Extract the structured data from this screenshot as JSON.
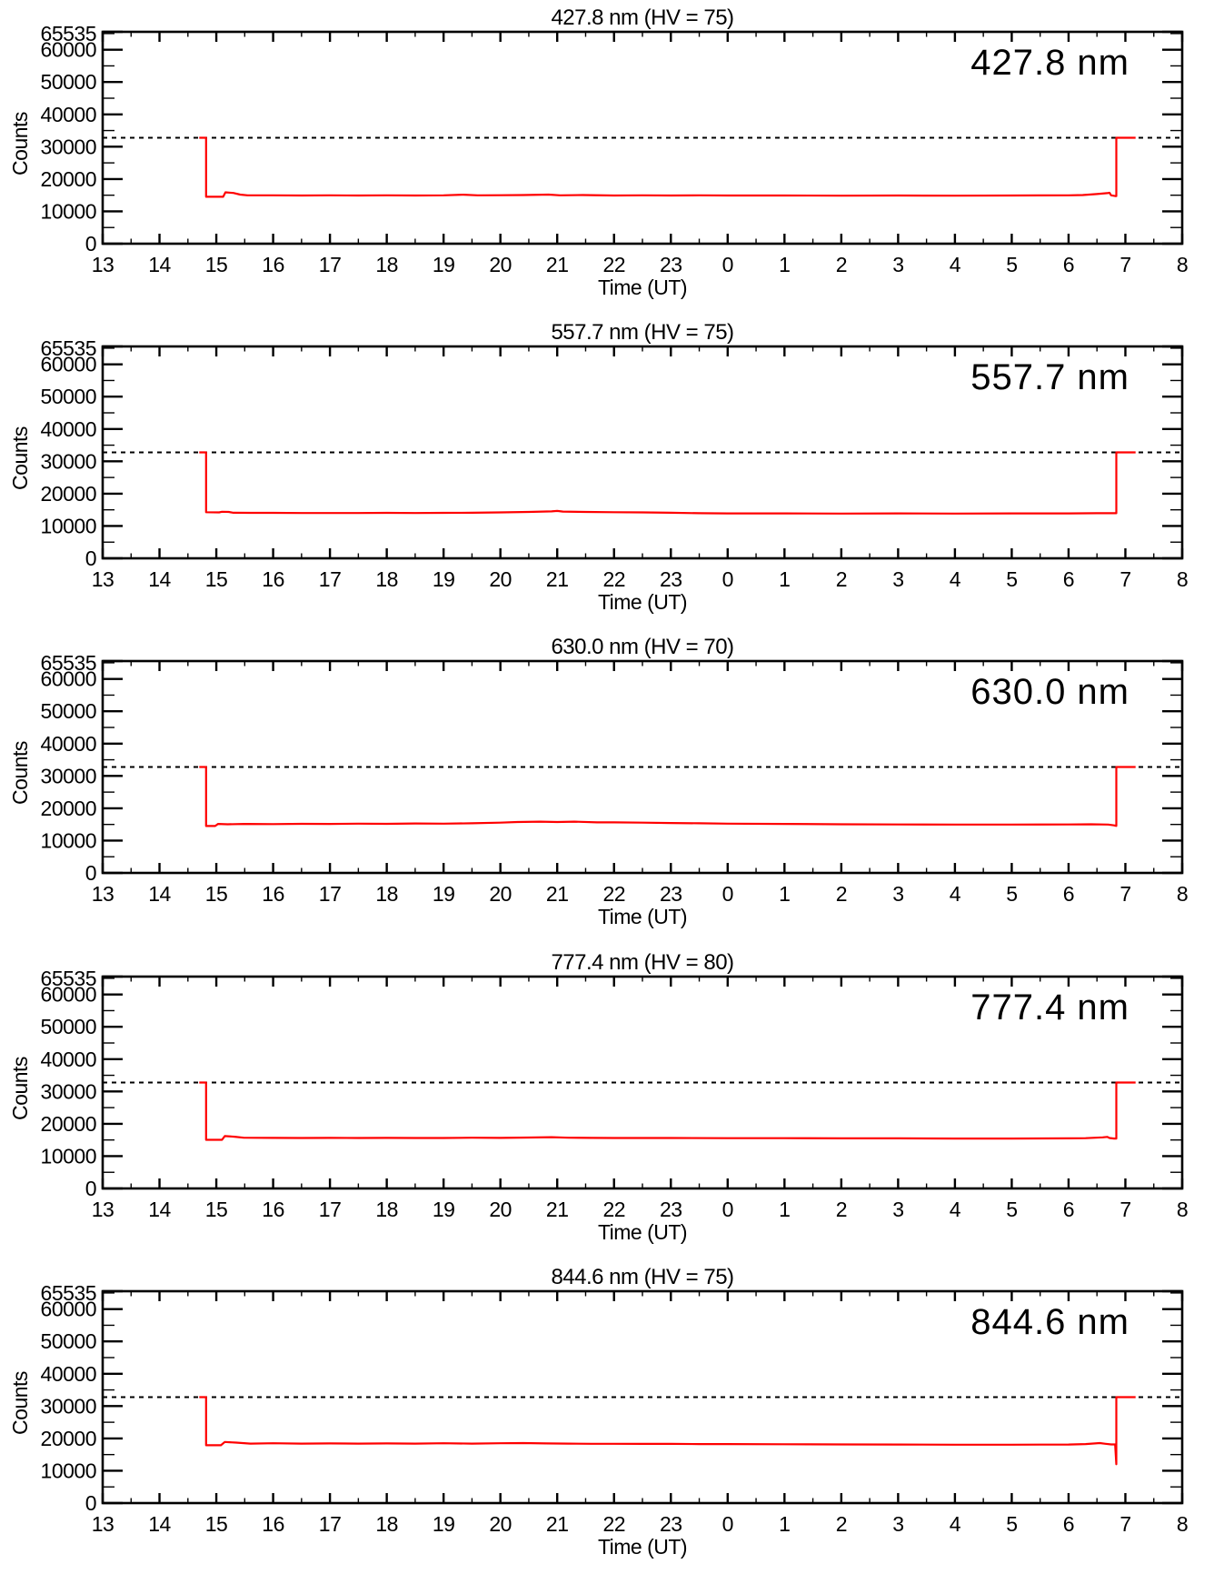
{
  "page": {
    "background": "#ffffff",
    "description": "Five stacked photometer count time-series panels, one per emission wavelength"
  },
  "chart_data": {
    "type": "line",
    "xlabel": "Time (UT)",
    "ylabel": "Counts",
    "ylim": [
      0,
      65535
    ],
    "xlim": [
      13,
      32
    ],
    "x_tick_labels": [
      "13",
      "14",
      "15",
      "16",
      "17",
      "18",
      "19",
      "20",
      "21",
      "22",
      "23",
      "0",
      "1",
      "2",
      "3",
      "4",
      "5",
      "6",
      "7",
      "8"
    ],
    "x_minor_step": 0.5,
    "y_tick_values": [
      0,
      10000,
      20000,
      30000,
      40000,
      50000,
      60000,
      65535
    ],
    "y_tick_labels": [
      "0",
      "10000",
      "20000",
      "30000",
      "40000",
      "50000",
      "60000",
      "65535"
    ],
    "y_minor_values": [
      5000,
      15000,
      25000,
      35000,
      45000,
      55000,
      65000
    ],
    "grid": false,
    "legend": "none",
    "dashed_line_y": 32768,
    "line_color": "#ff0000",
    "axis_color": "#000000",
    "panels": [
      {
        "title": "427.8 nm (HV = 75)",
        "corner_label": "427.8 nm",
        "wavelength_nm": 427.8,
        "hv": 75,
        "points": [
          [
            14.7,
            32768
          ],
          [
            14.82,
            32768
          ],
          [
            14.82,
            14500
          ],
          [
            15.12,
            14500
          ],
          [
            15.16,
            15900
          ],
          [
            15.3,
            15700
          ],
          [
            15.42,
            15200
          ],
          [
            15.55,
            14950
          ],
          [
            16.0,
            14950
          ],
          [
            16.5,
            14900
          ],
          [
            17.0,
            14950
          ],
          [
            17.5,
            14900
          ],
          [
            18.0,
            14950
          ],
          [
            18.5,
            14900
          ],
          [
            19.0,
            14950
          ],
          [
            19.35,
            15150
          ],
          [
            19.6,
            14950
          ],
          [
            20.0,
            15000
          ],
          [
            20.4,
            15050
          ],
          [
            20.85,
            15200
          ],
          [
            21.05,
            14950
          ],
          [
            21.45,
            15050
          ],
          [
            22.0,
            14900
          ],
          [
            22.5,
            14950
          ],
          [
            23.0,
            14900
          ],
          [
            23.5,
            14950
          ],
          [
            24.0,
            14900
          ],
          [
            25,
            14900
          ],
          [
            26,
            14850
          ],
          [
            27,
            14900
          ],
          [
            28,
            14850
          ],
          [
            29,
            14900
          ],
          [
            30,
            14950
          ],
          [
            30.25,
            15050
          ],
          [
            30.5,
            15350
          ],
          [
            30.68,
            15650
          ],
          [
            30.72,
            15750
          ],
          [
            30.75,
            14950
          ],
          [
            30.82,
            14750
          ],
          [
            30.84,
            14750
          ],
          [
            30.84,
            32768
          ],
          [
            31.18,
            32768
          ]
        ]
      },
      {
        "title": "557.7 nm (HV = 75)",
        "corner_label": "557.7 nm",
        "wavelength_nm": 557.7,
        "hv": 75,
        "points": [
          [
            14.7,
            32768
          ],
          [
            14.82,
            32768
          ],
          [
            14.82,
            14250
          ],
          [
            15.05,
            14200
          ],
          [
            15.1,
            14400
          ],
          [
            15.22,
            14350
          ],
          [
            15.3,
            14100
          ],
          [
            15.6,
            14050
          ],
          [
            16,
            14050
          ],
          [
            16.5,
            14000
          ],
          [
            17,
            14000
          ],
          [
            17.5,
            14000
          ],
          [
            18,
            14050
          ],
          [
            18.5,
            14000
          ],
          [
            19,
            14050
          ],
          [
            19.5,
            14100
          ],
          [
            20.0,
            14200
          ],
          [
            20.5,
            14350
          ],
          [
            20.9,
            14500
          ],
          [
            21.0,
            14650
          ],
          [
            21.1,
            14450
          ],
          [
            21.5,
            14350
          ],
          [
            22.0,
            14250
          ],
          [
            22.5,
            14200
          ],
          [
            23.0,
            14100
          ],
          [
            23.5,
            13950
          ],
          [
            24,
            13900
          ],
          [
            25,
            13900
          ],
          [
            26,
            13850
          ],
          [
            27,
            13900
          ],
          [
            28,
            13850
          ],
          [
            29,
            13900
          ],
          [
            30,
            13900
          ],
          [
            30.5,
            13950
          ],
          [
            30.84,
            13950
          ],
          [
            30.84,
            32768
          ],
          [
            31.18,
            32768
          ]
        ]
      },
      {
        "title": "630.0 nm (HV = 70)",
        "corner_label": "630.0 nm",
        "wavelength_nm": 630.0,
        "hv": 70,
        "points": [
          [
            14.7,
            32768
          ],
          [
            14.82,
            32768
          ],
          [
            14.82,
            14500
          ],
          [
            14.98,
            14500
          ],
          [
            15.03,
            15150
          ],
          [
            15.2,
            15050
          ],
          [
            15.5,
            15150
          ],
          [
            16,
            15100
          ],
          [
            16.5,
            15200
          ],
          [
            17,
            15150
          ],
          [
            17.5,
            15250
          ],
          [
            18,
            15200
          ],
          [
            18.5,
            15300
          ],
          [
            19,
            15250
          ],
          [
            19.5,
            15350
          ],
          [
            20,
            15550
          ],
          [
            20.3,
            15750
          ],
          [
            20.7,
            15850
          ],
          [
            21.0,
            15750
          ],
          [
            21.3,
            15850
          ],
          [
            21.7,
            15650
          ],
          [
            22.0,
            15650
          ],
          [
            22.5,
            15550
          ],
          [
            23.0,
            15450
          ],
          [
            23.5,
            15350
          ],
          [
            24,
            15250
          ],
          [
            25,
            15150
          ],
          [
            26,
            15050
          ],
          [
            27,
            15000
          ],
          [
            28,
            14950
          ],
          [
            29,
            14950
          ],
          [
            30,
            15000
          ],
          [
            30.4,
            15050
          ],
          [
            30.7,
            14950
          ],
          [
            30.8,
            14700
          ],
          [
            30.84,
            14550
          ],
          [
            30.84,
            32768
          ],
          [
            31.18,
            32768
          ]
        ]
      },
      {
        "title": "777.4 nm (HV = 80)",
        "corner_label": "777.4 nm",
        "wavelength_nm": 777.4,
        "hv": 80,
        "points": [
          [
            14.7,
            32768
          ],
          [
            14.82,
            32768
          ],
          [
            14.82,
            15050
          ],
          [
            15.1,
            15050
          ],
          [
            15.15,
            16200
          ],
          [
            15.32,
            16000
          ],
          [
            15.48,
            15700
          ],
          [
            16,
            15650
          ],
          [
            16.5,
            15600
          ],
          [
            17,
            15650
          ],
          [
            17.5,
            15600
          ],
          [
            18,
            15650
          ],
          [
            18.5,
            15600
          ],
          [
            19,
            15600
          ],
          [
            19.5,
            15700
          ],
          [
            20,
            15650
          ],
          [
            20.5,
            15750
          ],
          [
            20.9,
            15850
          ],
          [
            21.2,
            15700
          ],
          [
            21.6,
            15650
          ],
          [
            22,
            15600
          ],
          [
            23,
            15600
          ],
          [
            24,
            15550
          ],
          [
            25,
            15550
          ],
          [
            26,
            15500
          ],
          [
            27,
            15500
          ],
          [
            28,
            15450
          ],
          [
            29,
            15450
          ],
          [
            30,
            15500
          ],
          [
            30.3,
            15550
          ],
          [
            30.6,
            15800
          ],
          [
            30.68,
            15950
          ],
          [
            30.72,
            15600
          ],
          [
            30.8,
            15450
          ],
          [
            30.84,
            15450
          ],
          [
            30.84,
            32768
          ],
          [
            31.18,
            32768
          ]
        ]
      },
      {
        "title": "844.6 nm (HV = 75)",
        "corner_label": "844.6 nm",
        "wavelength_nm": 844.6,
        "hv": 75,
        "points": [
          [
            14.7,
            32768
          ],
          [
            14.82,
            32768
          ],
          [
            14.82,
            17900
          ],
          [
            15.08,
            17900
          ],
          [
            15.15,
            18900
          ],
          [
            15.35,
            18700
          ],
          [
            15.6,
            18400
          ],
          [
            16,
            18500
          ],
          [
            16.5,
            18400
          ],
          [
            17,
            18450
          ],
          [
            17.5,
            18400
          ],
          [
            18,
            18450
          ],
          [
            18.5,
            18400
          ],
          [
            19,
            18500
          ],
          [
            19.5,
            18400
          ],
          [
            20,
            18500
          ],
          [
            20.4,
            18550
          ],
          [
            20.8,
            18450
          ],
          [
            21.2,
            18400
          ],
          [
            21.6,
            18350
          ],
          [
            22,
            18350
          ],
          [
            22.5,
            18300
          ],
          [
            23,
            18300
          ],
          [
            23.5,
            18250
          ],
          [
            24,
            18250
          ],
          [
            25,
            18200
          ],
          [
            26,
            18150
          ],
          [
            27,
            18100
          ],
          [
            28,
            18050
          ],
          [
            29,
            18050
          ],
          [
            30,
            18100
          ],
          [
            30.3,
            18250
          ],
          [
            30.55,
            18550
          ],
          [
            30.65,
            18350
          ],
          [
            30.75,
            18150
          ],
          [
            30.82,
            18150
          ],
          [
            30.84,
            12000
          ],
          [
            30.84,
            32768
          ],
          [
            31.18,
            32768
          ]
        ]
      }
    ]
  }
}
